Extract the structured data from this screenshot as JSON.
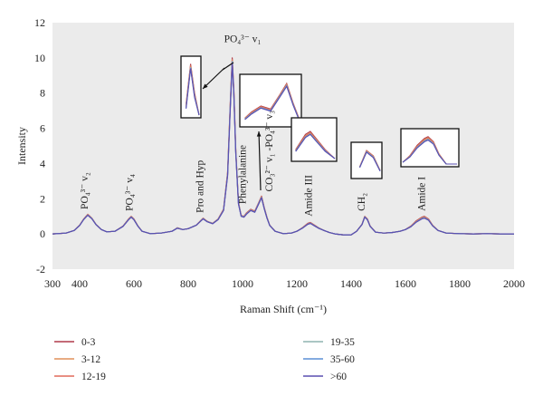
{
  "chart_data": {
    "type": "line",
    "xlabel": "Raman Shift (cm⁻¹)",
    "ylabel": "Intensity",
    "xlim": [
      300,
      2000
    ],
    "ylim": [
      -2,
      12
    ],
    "x_ticks": [
      "300",
      "400",
      "600",
      "800",
      "1000",
      "1200",
      "1400",
      "1600",
      "1800",
      "2000"
    ],
    "x_tick_values": [
      300,
      400,
      600,
      800,
      1000,
      1200,
      1400,
      1600,
      1800,
      2000
    ],
    "y_ticks": [
      "-2",
      "0",
      "2",
      "4",
      "6",
      "8",
      "10",
      "12"
    ],
    "y_tick_values": [
      -2,
      0,
      2,
      4,
      6,
      8,
      10,
      12
    ],
    "grid": false,
    "plot_background": "#ebebeb",
    "legend_position": "bottom",
    "x": [
      300,
      350,
      380,
      400,
      415,
      430,
      445,
      460,
      480,
      500,
      530,
      560,
      580,
      590,
      600,
      615,
      630,
      660,
      700,
      740,
      760,
      780,
      800,
      830,
      845,
      855,
      870,
      890,
      910,
      930,
      945,
      955,
      962,
      968,
      975,
      985,
      995,
      1005,
      1015,
      1030,
      1045,
      1060,
      1070,
      1080,
      1090,
      1100,
      1120,
      1150,
      1180,
      1200,
      1220,
      1240,
      1250,
      1265,
      1280,
      1300,
      1320,
      1340,
      1370,
      1400,
      1420,
      1440,
      1450,
      1460,
      1470,
      1490,
      1520,
      1550,
      1580,
      1600,
      1620,
      1640,
      1660,
      1670,
      1685,
      1700,
      1720,
      1750,
      1800,
      1850,
      1900,
      1950,
      2000
    ],
    "series": [
      {
        "name": "0-3",
        "color": "#b03a4a",
        "values": [
          0.0,
          0.05,
          0.2,
          0.5,
          0.85,
          1.12,
          0.9,
          0.55,
          0.25,
          0.12,
          0.15,
          0.45,
          0.85,
          1.0,
          0.85,
          0.45,
          0.15,
          0.02,
          0.05,
          0.15,
          0.35,
          0.25,
          0.3,
          0.5,
          0.75,
          0.9,
          0.72,
          0.6,
          0.85,
          1.4,
          3.5,
          7.5,
          10.0,
          8.2,
          4.8,
          1.8,
          1.05,
          1.0,
          1.2,
          1.4,
          1.3,
          1.8,
          2.15,
          1.5,
          0.95,
          0.5,
          0.15,
          0.02,
          0.05,
          0.15,
          0.35,
          0.6,
          0.65,
          0.5,
          0.35,
          0.2,
          0.08,
          0.0,
          -0.05,
          -0.05,
          0.15,
          0.55,
          1.0,
          0.85,
          0.45,
          0.1,
          0.05,
          0.08,
          0.15,
          0.25,
          0.45,
          0.75,
          0.95,
          1.0,
          0.85,
          0.5,
          0.2,
          0.05,
          0.02,
          0.0,
          0.02,
          0.0,
          0.0
        ]
      },
      {
        "name": "3-12",
        "color": "#e0905a",
        "values": [
          0.0,
          0.05,
          0.2,
          0.5,
          0.85,
          1.11,
          0.9,
          0.55,
          0.25,
          0.12,
          0.15,
          0.45,
          0.84,
          0.99,
          0.84,
          0.45,
          0.15,
          0.02,
          0.05,
          0.15,
          0.34,
          0.25,
          0.3,
          0.5,
          0.74,
          0.89,
          0.71,
          0.6,
          0.84,
          1.38,
          3.45,
          7.4,
          9.9,
          8.1,
          4.75,
          1.78,
          1.04,
          0.99,
          1.18,
          1.38,
          1.28,
          1.78,
          2.12,
          1.48,
          0.94,
          0.5,
          0.15,
          0.02,
          0.05,
          0.15,
          0.34,
          0.58,
          0.63,
          0.49,
          0.34,
          0.2,
          0.08,
          0.0,
          -0.05,
          -0.05,
          0.15,
          0.55,
          0.99,
          0.84,
          0.45,
          0.1,
          0.05,
          0.08,
          0.15,
          0.25,
          0.44,
          0.72,
          0.92,
          0.97,
          0.83,
          0.49,
          0.2,
          0.05,
          0.02,
          0.0,
          0.02,
          0.0,
          0.0
        ]
      },
      {
        "name": "12-19",
        "color": "#e06a5a",
        "values": [
          0.0,
          0.05,
          0.2,
          0.49,
          0.84,
          1.1,
          0.89,
          0.55,
          0.25,
          0.12,
          0.15,
          0.44,
          0.83,
          0.98,
          0.83,
          0.44,
          0.15,
          0.02,
          0.05,
          0.15,
          0.34,
          0.25,
          0.3,
          0.5,
          0.74,
          0.88,
          0.71,
          0.6,
          0.84,
          1.37,
          3.42,
          7.35,
          9.85,
          8.05,
          4.72,
          1.76,
          1.03,
          0.98,
          1.17,
          1.37,
          1.27,
          1.77,
          2.1,
          1.47,
          0.93,
          0.49,
          0.15,
          0.02,
          0.05,
          0.15,
          0.33,
          0.57,
          0.62,
          0.48,
          0.34,
          0.2,
          0.08,
          0.0,
          -0.05,
          -0.05,
          0.15,
          0.54,
          0.98,
          0.83,
          0.44,
          0.1,
          0.05,
          0.08,
          0.15,
          0.25,
          0.43,
          0.71,
          0.9,
          0.95,
          0.82,
          0.48,
          0.2,
          0.05,
          0.02,
          0.0,
          0.02,
          0.0,
          0.0
        ]
      },
      {
        "name": "19-35",
        "color": "#8fb3b0",
        "values": [
          0.0,
          0.05,
          0.2,
          0.49,
          0.83,
          1.08,
          0.88,
          0.54,
          0.25,
          0.12,
          0.15,
          0.44,
          0.82,
          0.97,
          0.82,
          0.44,
          0.15,
          0.02,
          0.05,
          0.15,
          0.33,
          0.25,
          0.3,
          0.5,
          0.73,
          0.87,
          0.7,
          0.59,
          0.83,
          1.35,
          3.38,
          7.3,
          9.8,
          8.0,
          4.68,
          1.74,
          1.02,
          0.97,
          1.15,
          1.35,
          1.25,
          1.75,
          2.08,
          1.45,
          0.92,
          0.49,
          0.15,
          0.02,
          0.05,
          0.15,
          0.33,
          0.56,
          0.61,
          0.47,
          0.33,
          0.2,
          0.08,
          0.0,
          -0.05,
          -0.05,
          0.15,
          0.54,
          0.97,
          0.82,
          0.44,
          0.1,
          0.05,
          0.08,
          0.15,
          0.25,
          0.42,
          0.69,
          0.88,
          0.93,
          0.8,
          0.47,
          0.2,
          0.05,
          0.02,
          0.0,
          0.02,
          0.0,
          0.0
        ]
      },
      {
        "name": "35-60",
        "color": "#5b8fd6",
        "values": [
          0.0,
          0.05,
          0.2,
          0.48,
          0.82,
          1.07,
          0.87,
          0.54,
          0.25,
          0.12,
          0.15,
          0.43,
          0.81,
          0.96,
          0.81,
          0.43,
          0.15,
          0.02,
          0.05,
          0.15,
          0.33,
          0.25,
          0.3,
          0.5,
          0.72,
          0.86,
          0.69,
          0.59,
          0.82,
          1.34,
          3.35,
          7.25,
          9.75,
          7.95,
          4.65,
          1.72,
          1.01,
          0.96,
          1.14,
          1.34,
          1.24,
          1.74,
          2.06,
          1.44,
          0.91,
          0.48,
          0.15,
          0.02,
          0.05,
          0.15,
          0.32,
          0.55,
          0.6,
          0.46,
          0.33,
          0.2,
          0.08,
          0.0,
          -0.05,
          -0.05,
          0.15,
          0.53,
          0.96,
          0.81,
          0.43,
          0.1,
          0.05,
          0.08,
          0.15,
          0.25,
          0.41,
          0.68,
          0.86,
          0.91,
          0.79,
          0.46,
          0.2,
          0.05,
          0.02,
          0.0,
          0.02,
          0.0,
          0.0
        ]
      },
      {
        "name": ">60",
        "color": "#5a4fb0",
        "values": [
          0.0,
          0.05,
          0.2,
          0.48,
          0.82,
          1.06,
          0.86,
          0.53,
          0.25,
          0.12,
          0.15,
          0.43,
          0.8,
          0.95,
          0.8,
          0.43,
          0.15,
          0.02,
          0.05,
          0.15,
          0.32,
          0.25,
          0.3,
          0.5,
          0.72,
          0.85,
          0.69,
          0.58,
          0.81,
          1.33,
          3.3,
          7.2,
          9.7,
          7.9,
          4.6,
          1.7,
          1.0,
          0.95,
          1.13,
          1.33,
          1.23,
          1.72,
          2.05,
          1.43,
          0.9,
          0.48,
          0.15,
          0.02,
          0.05,
          0.15,
          0.32,
          0.55,
          0.6,
          0.46,
          0.32,
          0.2,
          0.08,
          0.0,
          -0.05,
          -0.05,
          0.15,
          0.53,
          0.95,
          0.8,
          0.43,
          0.1,
          0.05,
          0.08,
          0.15,
          0.25,
          0.41,
          0.67,
          0.85,
          0.9,
          0.78,
          0.46,
          0.2,
          0.05,
          0.02,
          0.0,
          0.02,
          0.0,
          0.0
        ]
      }
    ],
    "annotations": [
      {
        "name": "po4-v2",
        "label": "PO₄³⁻ v₂",
        "x": 430,
        "y": 1.4,
        "rotate": true
      },
      {
        "name": "po4-v4",
        "label": "PO₄³⁻ v₄",
        "x": 595,
        "y": 1.3,
        "rotate": true
      },
      {
        "name": "pro-hyp",
        "label": "Pro and Hyp",
        "x": 855,
        "y": 1.2,
        "rotate": true
      },
      {
        "name": "phenylalanine",
        "label": "Phenylalanine",
        "x": 1012,
        "y": 1.7,
        "rotate": true
      },
      {
        "name": "co3-po4",
        "label": "CO₃²⁻ v₁ -PO₄³⁻ v₃",
        "x": 1110,
        "y": 2.4,
        "rotate": true
      },
      {
        "name": "amide-iii",
        "label": "Amide III",
        "x": 1255,
        "y": 1.0,
        "rotate": true
      },
      {
        "name": "ch2",
        "label": "CH₂",
        "x": 1450,
        "y": 1.3,
        "rotate": true
      },
      {
        "name": "amide-i",
        "label": "Amide I",
        "x": 1672,
        "y": 1.3,
        "rotate": true
      },
      {
        "name": "po4-v1",
        "label": "PO₄³⁻ v₁",
        "x": 1000,
        "y": 10.9,
        "rotate": false
      }
    ],
    "insets": [
      {
        "name": "inset-po4-v1"
      },
      {
        "name": "inset-phenylalanine"
      },
      {
        "name": "inset-amide-iii"
      },
      {
        "name": "inset-ch2"
      },
      {
        "name": "inset-amide-i"
      }
    ]
  }
}
